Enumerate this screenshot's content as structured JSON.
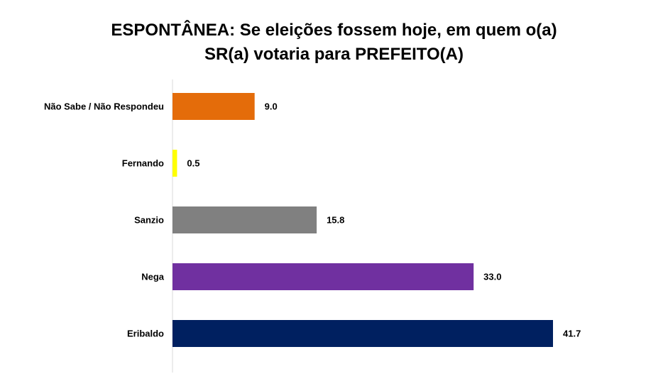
{
  "chart_data": {
    "type": "bar",
    "orientation": "horizontal",
    "title": [
      "ESPONTÂNEA: Se eleições fossem hoje, em quem o(a)",
      "SR(a) votaria para PREFEITO(A)"
    ],
    "xlabel": "",
    "ylabel": "",
    "categories": [
      "Não Sabe / Não Respondeu",
      "Fernando",
      "Sanzio",
      "Nega",
      "Eribaldo"
    ],
    "values": [
      9.0,
      0.5,
      15.8,
      33.0,
      41.7
    ],
    "value_labels": [
      "9.0",
      "0.5",
      "15.8",
      "33.0",
      "41.7"
    ],
    "colors": [
      "#E46C0A",
      "#FFFF00",
      "#808080",
      "#7030A0",
      "#002060"
    ],
    "xlim": [
      0,
      41.7
    ],
    "grid": false,
    "legend": "none"
  }
}
